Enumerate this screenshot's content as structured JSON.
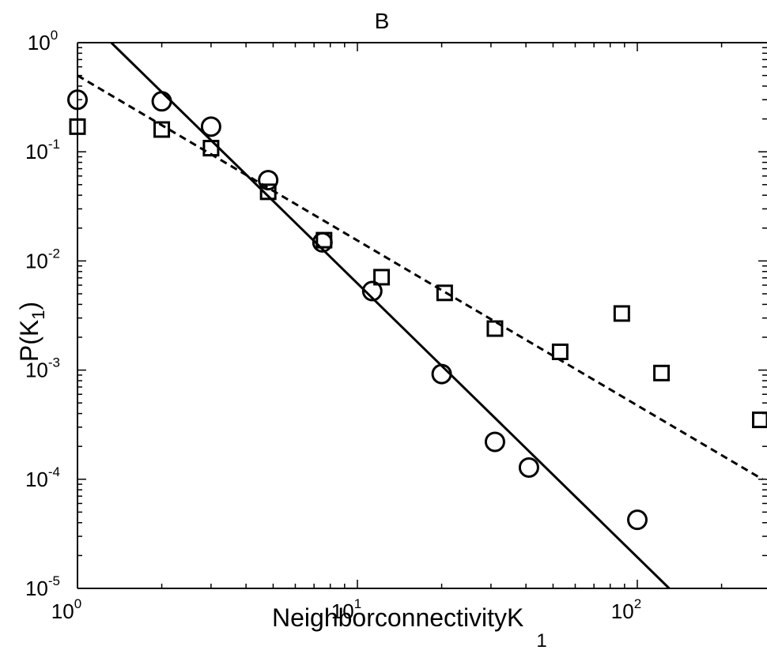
{
  "chart_data": {
    "type": "scatter",
    "title": "B",
    "xlabel": "Neighborconnectivity",
    "xlabel_var": "K",
    "xlabel_sub": "1",
    "ylabel": "P(K",
    "ylabel_sub": "1",
    "ylabel_close": ")",
    "x_scale": "log",
    "y_scale": "log",
    "xlim": [
      1,
      280
    ],
    "ylim": [
      1e-05,
      1
    ],
    "grid": false,
    "x_ticks": [
      {
        "base": "10",
        "exp": "0",
        "value": 1
      },
      {
        "base": "10",
        "exp": "1",
        "value": 10
      },
      {
        "base": "10",
        "exp": "2",
        "value": 100
      }
    ],
    "y_ticks": [
      {
        "base": "10",
        "exp": "0",
        "value": 1
      },
      {
        "base": "10",
        "exp": "-1",
        "value": 0.1
      },
      {
        "base": "10",
        "exp": "-2",
        "value": 0.01
      },
      {
        "base": "10",
        "exp": "-3",
        "value": 0.001
      },
      {
        "base": "10",
        "exp": "-4",
        "value": 0.0001
      },
      {
        "base": "10",
        "exp": "-5",
        "value": 1e-05
      }
    ],
    "series": [
      {
        "marker": "circle",
        "points": [
          [
            1.0,
            0.3
          ],
          [
            2.0,
            0.29
          ],
          [
            3.0,
            0.17
          ],
          [
            4.8,
            0.055
          ],
          [
            7.5,
            0.0148
          ],
          [
            11.3,
            0.0053
          ],
          [
            20.0,
            0.00092
          ],
          [
            31.0,
            0.00022
          ],
          [
            41.0,
            0.000128
          ],
          [
            100.0,
            4.25e-05
          ]
        ]
      },
      {
        "marker": "square",
        "points": [
          [
            1.0,
            0.17
          ],
          [
            2.0,
            0.16
          ],
          [
            3.0,
            0.108
          ],
          [
            4.8,
            0.043
          ],
          [
            7.6,
            0.0155
          ],
          [
            12.2,
            0.0071
          ],
          [
            20.5,
            0.0051
          ],
          [
            31.0,
            0.0024
          ],
          [
            53.0,
            0.00147
          ],
          [
            88.0,
            0.0033
          ],
          [
            122.0,
            0.00094
          ],
          [
            275.0,
            0.00035
          ]
        ]
      }
    ],
    "fit_lines": [
      {
        "style": "solid",
        "points": [
          [
            1.32,
            1.0
          ],
          [
            130.0,
            1e-05
          ]
        ]
      },
      {
        "style": "dashed",
        "points": [
          [
            1.0,
            0.5
          ],
          [
            280.0,
            0.0001
          ]
        ]
      }
    ]
  }
}
